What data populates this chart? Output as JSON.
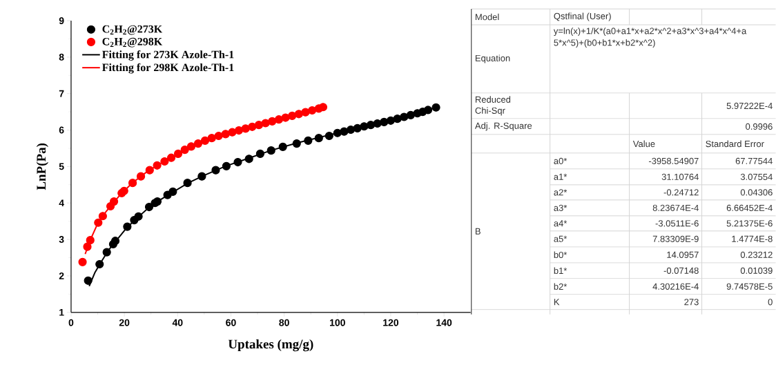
{
  "chart_data": [
    {
      "type": "scatter",
      "xlabel": "Uptakes (mg/g)",
      "ylabel": "LnP(Pa)",
      "xlim": [
        0,
        150
      ],
      "ylim": [
        1,
        9
      ],
      "xticks": [
        0,
        20,
        40,
        60,
        80,
        100,
        120,
        140
      ],
      "yticks": [
        1,
        2,
        3,
        4,
        5,
        6,
        7,
        8,
        9
      ],
      "legend": "top left",
      "series": [
        {
          "name": "C$_{2}$H$_{2}$@273K",
          "type": "scatter",
          "marker": "circle",
          "color": "#000000",
          "x": [
            6.4,
            10.7,
            13.4,
            15.8,
            16.6,
            21.1,
            23.7,
            25.3,
            29.3,
            31.5,
            32.4,
            36.2,
            38.2,
            43.7,
            49.1,
            54.3,
            58.3,
            62.6,
            66.8,
            71,
            75.1,
            79.5,
            84.7,
            89,
            93,
            96.9,
            100,
            102.5,
            105,
            107.5,
            110,
            112.5,
            115,
            117.5,
            120,
            122.5,
            125,
            127.5,
            130,
            132,
            134,
            137
          ],
          "values": [
            1.87,
            2.32,
            2.65,
            2.87,
            2.96,
            3.35,
            3.53,
            3.63,
            3.89,
            4.0,
            4.04,
            4.22,
            4.31,
            4.55,
            4.73,
            4.9,
            5.01,
            5.12,
            5.21,
            5.35,
            5.44,
            5.54,
            5.63,
            5.71,
            5.78,
            5.84,
            5.92,
            5.96,
            6.01,
            6.05,
            6.1,
            6.14,
            6.18,
            6.22,
            6.26,
            6.31,
            6.36,
            6.41,
            6.46,
            6.5,
            6.55,
            6.62
          ]
        },
        {
          "name": "C$_{2}$H$_{2}$@298K",
          "type": "scatter",
          "marker": "circle",
          "color": "#ff0000",
          "x": [
            4.3,
            6.1,
            7.2,
            10.2,
            11.9,
            14.8,
            16.1,
            19.0,
            19.9,
            23.1,
            26.2,
            29.5,
            32.3,
            35.1,
            37.6,
            40.2,
            42.7,
            45.1,
            47.7,
            50.3,
            52.8,
            55.4,
            58,
            60.5,
            63,
            65.5,
            68,
            70.5,
            73,
            75.5,
            78,
            80.5,
            83,
            85.5,
            88,
            90.5,
            93,
            94.6
          ],
          "values": [
            2.38,
            2.8,
            2.98,
            3.46,
            3.64,
            3.91,
            4.04,
            4.27,
            4.33,
            4.55,
            4.73,
            4.9,
            5.03,
            5.14,
            5.24,
            5.35,
            5.46,
            5.55,
            5.63,
            5.71,
            5.78,
            5.84,
            5.89,
            5.94,
            5.99,
            6.04,
            6.09,
            6.14,
            6.19,
            6.24,
            6.29,
            6.34,
            6.39,
            6.44,
            6.49,
            6.54,
            6.59,
            6.63
          ]
        },
        {
          "name": "Fitting for 273K Azole-Th-1",
          "type": "line",
          "color": "#000000",
          "x": [
            6.8,
            9,
            11,
            14,
            17,
            21,
            25,
            30,
            36,
            44,
            50,
            58,
            66,
            75,
            85,
            95,
            105,
            115,
            125,
            137
          ],
          "values": [
            1.72,
            2.1,
            2.35,
            2.7,
            2.97,
            3.33,
            3.6,
            3.93,
            4.2,
            4.55,
            4.76,
            5.01,
            5.21,
            5.44,
            5.65,
            5.83,
            6.01,
            6.18,
            6.36,
            6.62
          ]
        },
        {
          "name": "Fitting for 298K Azole-Th-1",
          "type": "line",
          "color": "#ff0000",
          "x": [
            5.3,
            7,
            10,
            12,
            15,
            19,
            23,
            28,
            33,
            38,
            45,
            52,
            60,
            70,
            80,
            90,
            94.6
          ],
          "values": [
            2.6,
            2.95,
            3.44,
            3.66,
            3.93,
            4.27,
            4.55,
            4.83,
            5.06,
            5.24,
            5.54,
            5.76,
            5.93,
            6.13,
            6.33,
            6.53,
            6.63
          ]
        }
      ]
    },
    {
      "type": "other",
      "annotations": [
        "Model",
        "Qstfinal (User)",
        "Equation",
        "y=ln(x)+1/K*(a0+a1*x+a2*x^2+a3*x^3+a4*x^4+a",
        "5*x^5)+(b0+b1*x+b2*x^2)",
        "Reduced Chi-Sqr",
        "5.97222E-4",
        "Adj. R-Square",
        "0.9996",
        "Value",
        "Standard Error",
        "B",
        "a0*",
        "-3958.54907",
        "67.77544",
        "a1*",
        "31.10764",
        "3.07554",
        "a2*",
        "-0.24712",
        "0.04306",
        "a3*",
        "8.23674E-4",
        "6.66452E-4",
        "a4*",
        "-3.0511E-6",
        "5.21375E-6",
        "a5*",
        "7.83309E-9",
        "1.4774E-8",
        "b0*",
        "14.0957",
        "0.23212",
        "b1*",
        "-0.07148",
        "0.01039",
        "b2*",
        "4.30216E-4",
        "9.74578E-5",
        "K",
        "273",
        "0"
      ]
    }
  ]
}
